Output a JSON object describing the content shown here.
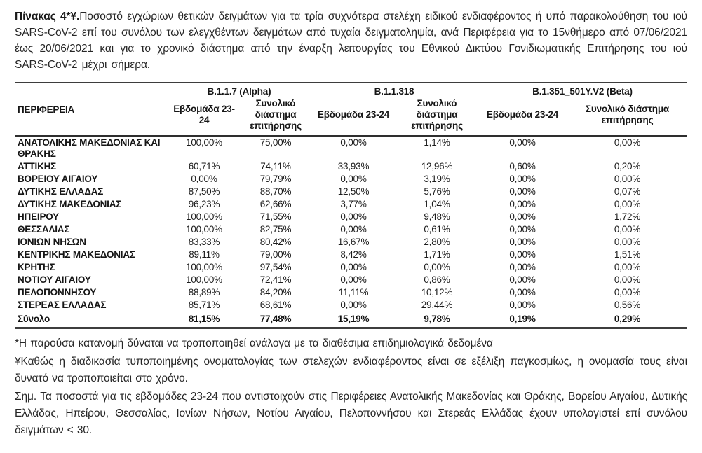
{
  "title": {
    "bold": "Πίνακας 4*¥.",
    "text": "Ποσοστό εγχώριων θετικών δειγμάτων για τα τρία συχνότερα στελέχη ειδικού ενδιαφέροντος ή υπό παρακολούθηση του ιού SARS-CoV-2 επί του συνόλου των ελεγχθέντων δειγμάτων από τυχαία δειγματοληψία, ανά Περιφέρεια για το 15νθήμερο από 07/06/2021 έως 20/06/2021 και για το χρονικό διάστημα από την έναρξη λειτουργίας του Εθνικού Δικτύου Γονιδιωματικής Επιτήρησης του ιού SARS-CoV-2 μέχρι σήμερα."
  },
  "table": {
    "region_header": "ΠΕΡΙΦΕΡΕΙΑ",
    "variant_groups": [
      {
        "name": "B.1.1.7 (Alpha)"
      },
      {
        "name": "B.1.1.318"
      },
      {
        "name": "B.1.351_501Y.V2 (Beta)"
      }
    ],
    "column_headers": [
      "Εβδομάδα 23-24",
      "Συνολικό διάστημα επιτήρησης",
      "Εβδομάδα 23-24",
      "Συνολικό διάστημα επιτήρησης",
      "Εβδομάδα 23-24",
      "Συνολικό διάστημα επιτήρησης"
    ],
    "rows": [
      {
        "region": "ΑΝΑΤΟΛΙΚΗΣ ΜΑΚΕΔΟΝΙΑΣ ΚΑΙ ΘΡΑΚΗΣ",
        "values": [
          "100,00%",
          "75,00%",
          "0,00%",
          "1,14%",
          "0,00%",
          "0,00%"
        ]
      },
      {
        "region": "ΑΤΤΙΚΗΣ",
        "values": [
          "60,71%",
          "74,11%",
          "33,93%",
          "12,96%",
          "0,60%",
          "0,20%"
        ]
      },
      {
        "region": "ΒΟΡΕΙΟΥ ΑΙΓΑΙΟΥ",
        "values": [
          "0,00%",
          "79,79%",
          "0,00%",
          "3,19%",
          "0,00%",
          "0,00%"
        ]
      },
      {
        "region": "ΔΥΤΙΚΗΣ ΕΛΛΑΔΑΣ",
        "values": [
          "87,50%",
          "88,70%",
          "12,50%",
          "5,76%",
          "0,00%",
          "0,07%"
        ]
      },
      {
        "region": "ΔΥΤΙΚΗΣ ΜΑΚΕΔΟΝΙΑΣ",
        "values": [
          "96,23%",
          "62,66%",
          "3,77%",
          "1,04%",
          "0,00%",
          "0,00%"
        ]
      },
      {
        "region": "ΗΠΕΙΡΟΥ",
        "values": [
          "100,00%",
          "71,55%",
          "0,00%",
          "9,48%",
          "0,00%",
          "1,72%"
        ]
      },
      {
        "region": "ΘΕΣΣΑΛΙΑΣ",
        "values": [
          "100,00%",
          "82,75%",
          "0,00%",
          "0,61%",
          "0,00%",
          "0,00%"
        ]
      },
      {
        "region": "ΙΟΝΙΩΝ ΝΗΣΩΝ",
        "values": [
          "83,33%",
          "80,42%",
          "16,67%",
          "2,80%",
          "0,00%",
          "0,00%"
        ]
      },
      {
        "region": "ΚΕΝΤΡΙΚΗΣ ΜΑΚΕΔΟΝΙΑΣ",
        "values": [
          "89,11%",
          "79,00%",
          "8,42%",
          "1,71%",
          "0,00%",
          "1,51%"
        ]
      },
      {
        "region": "ΚΡΗΤΗΣ",
        "values": [
          "100,00%",
          "97,54%",
          "0,00%",
          "0,00%",
          "0,00%",
          "0,00%"
        ]
      },
      {
        "region": "ΝΟΤΙΟΥ ΑΙΓΑΙΟΥ",
        "values": [
          "100,00%",
          "72,41%",
          "0,00%",
          "0,86%",
          "0,00%",
          "0,00%"
        ]
      },
      {
        "region": "ΠΕΛΟΠΟΝΝΗΣΟΥ",
        "values": [
          "88,89%",
          "84,20%",
          "11,11%",
          "10,12%",
          "0,00%",
          "0,00%"
        ]
      },
      {
        "region": "ΣΤΕΡΕΑΣ ΕΛΛΑΔΑΣ",
        "values": [
          "85,71%",
          "68,61%",
          "0,00%",
          "29,44%",
          "0,00%",
          "0,56%"
        ]
      }
    ],
    "total_row": {
      "label": "Σύνολο",
      "values": [
        "81,15%",
        "77,48%",
        "15,19%",
        "9,78%",
        "0,19%",
        "0,29%"
      ]
    }
  },
  "footnotes": [
    "*Η παρούσα κατανομή δύναται να τροποποιηθεί ανάλογα με τα διαθέσιμα επιδημιολογικά δεδομένα",
    "¥Καθώς η διαδικασία τυποποιημένης ονοματολογίας των στελεχών ενδιαφέροντος είναι σε εξέλιξη παγκοσμίως, η ονομασία τους είναι δυνατό να τροποποιείται στο χρόνο.",
    "Σημ.  Τα ποσοστά για τις εβδομάδες 23-24 που αντιστοιχούν στις Περιφέρειες Ανατολικής Μακεδονίας και Θράκης, Βορείου Αιγαίου, Δυτικής Ελλάδας, Ηπείρου, Θεσσαλίας, Ιονίων Νήσων, Νοτίου Αιγαίου, Πελοποννήσου και Στερεάς Ελλάδας έχουν υπολογιστεί επί συνόλου δειγμάτων < 30."
  ],
  "colors": {
    "text": "#222222",
    "border": "#3d3d3d",
    "background": "#ffffff"
  }
}
